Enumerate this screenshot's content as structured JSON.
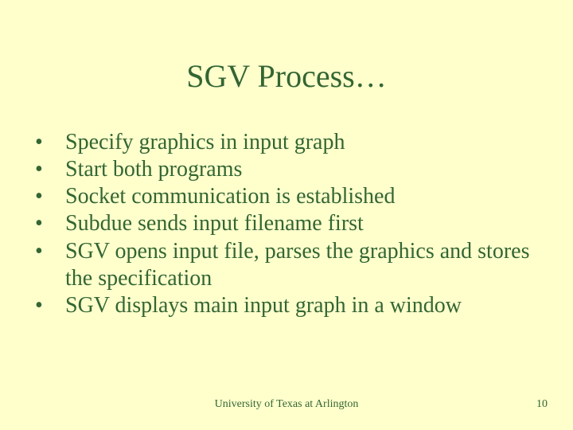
{
  "slide": {
    "background_color": "#ffffcc",
    "text_color": "#336633",
    "title_fontsize": 40,
    "body_fontsize": 28,
    "footer_fontsize": 14,
    "font_family": "Times New Roman"
  },
  "title": "SGV Process…",
  "bullets": [
    "Specify graphics in input graph",
    "Start both programs",
    "Socket communication is established",
    "Subdue sends input filename first",
    "SGV opens input file, parses the graphics and stores the specification",
    "SGV displays main input graph in a window"
  ],
  "footer": {
    "center": "University of Texas at Arlington",
    "page_number": "10"
  }
}
